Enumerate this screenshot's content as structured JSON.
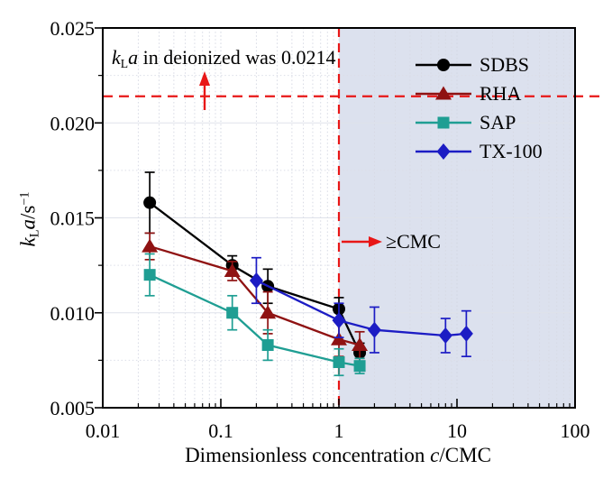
{
  "figure": {
    "annotation_kla": {
      "k": "k",
      "sub": "L",
      "a": "a",
      "rest": " in deionized was 0.0214"
    },
    "annotation_cmc": "≥CMC",
    "x_axis_label": {
      "pre": "Dimensionless concentration ",
      "c": "c",
      "post": "/CMC"
    },
    "y_axis_label": {
      "k": "k",
      "sub": "L",
      "a": "a",
      "unit": "/s",
      "sup": "−1"
    }
  },
  "chart_data": {
    "type": "line",
    "x_scale": "log",
    "xlim": [
      0.01,
      100
    ],
    "ylim": [
      0.005,
      0.025
    ],
    "xlabel": "Dimensionless concentration c/CMC",
    "ylabel": "kLa/s−1",
    "grid": true,
    "legend_position": "top-right",
    "x_ticks": [
      {
        "v": 0.01,
        "label": "0.01"
      },
      {
        "v": 0.1,
        "label": "0.1"
      },
      {
        "v": 1,
        "label": "1"
      },
      {
        "v": 10,
        "label": "10"
      },
      {
        "v": 100,
        "label": "100"
      }
    ],
    "y_ticks": [
      {
        "v": 0.005,
        "label": "0.005"
      },
      {
        "v": 0.01,
        "label": "0.010"
      },
      {
        "v": 0.015,
        "label": "0.015"
      },
      {
        "v": 0.02,
        "label": "0.020"
      },
      {
        "v": 0.025,
        "label": "0.025"
      }
    ],
    "shaded_region": {
      "x_from": 1,
      "x_to": 100,
      "color": "#dce1ee"
    },
    "reference": {
      "horizontal_line_y": 0.0214,
      "vertical_line_x": 1,
      "color": "#e81717",
      "style": "dashed"
    },
    "series": [
      {
        "name": "SDBS",
        "color": "#000000",
        "marker": "circle",
        "x": [
          0.025,
          0.125,
          0.25,
          1,
          1.5
        ],
        "y": [
          0.0158,
          0.0125,
          0.0114,
          0.0102,
          0.0079
        ],
        "yerr": [
          0.0016,
          0.0005,
          0.0009,
          0.0006,
          0.0005
        ]
      },
      {
        "name": "RHA",
        "color": "#8f1212",
        "marker": "triangle",
        "x": [
          0.025,
          0.125,
          0.25,
          1,
          1.5
        ],
        "y": [
          0.0135,
          0.0122,
          0.01,
          0.0086,
          0.0083
        ],
        "yerr": [
          0.0007,
          0.0005,
          0.0011,
          0.0009,
          0.0007
        ]
      },
      {
        "name": "SAP",
        "color": "#1f9e93",
        "marker": "square",
        "x": [
          0.025,
          0.125,
          0.25,
          1,
          1.5
        ],
        "y": [
          0.012,
          0.01,
          0.0083,
          0.0074,
          0.0072
        ],
        "yerr": [
          0.0011,
          0.0009,
          0.0008,
          0.0007,
          0.0004
        ]
      },
      {
        "name": "TX-100",
        "color": "#1c1cc4",
        "marker": "diamond",
        "x": [
          0.2,
          1,
          2,
          8,
          12
        ],
        "y": [
          0.0117,
          0.0096,
          0.0091,
          0.0088,
          0.0089
        ],
        "yerr": [
          0.0012,
          0.0009,
          0.0012,
          0.0009,
          0.0012
        ]
      }
    ]
  }
}
